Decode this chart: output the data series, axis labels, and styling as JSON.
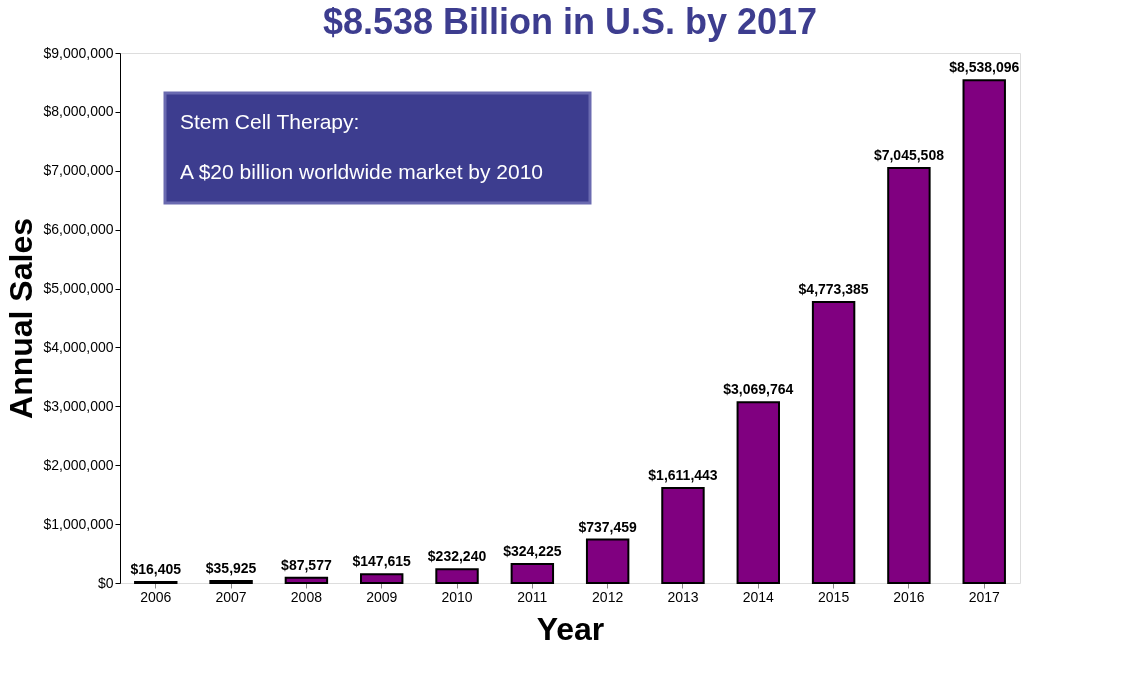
{
  "chart_data": {
    "type": "bar",
    "title": "$8.538 Billion in U.S. by 2017",
    "xlabel": "Year",
    "ylabel": "Annual Sales",
    "categories": [
      "2006",
      "2007",
      "2008",
      "2009",
      "2010",
      "2011",
      "2012",
      "2013",
      "2014",
      "2015",
      "2016",
      "2017"
    ],
    "values": [
      16405,
      35925,
      87577,
      147615,
      232240,
      324225,
      737459,
      1611443,
      3069764,
      4773385,
      7045508,
      8538096
    ],
    "value_labels": [
      "$16,405",
      "$35,925",
      "$87,577",
      "$147,615",
      "$232,240",
      "$324,225",
      "$737,459",
      "$1,611,443",
      "$3,069,764",
      "$4,773,385",
      "$7,045,508",
      "$8,538,096"
    ],
    "color": "#800080",
    "ylim": [
      0,
      9000000
    ],
    "yticks": [
      {
        "value": 0,
        "label": "$0"
      },
      {
        "value": 1000000,
        "label": "$1,000,000"
      },
      {
        "value": 2000000,
        "label": "$2,000,000"
      },
      {
        "value": 3000000,
        "label": "$3,000,000"
      },
      {
        "value": 4000000,
        "label": "$4,000,000"
      },
      {
        "value": 5000000,
        "label": "$5,000,000"
      },
      {
        "value": 6000000,
        "label": "$6,000,000"
      },
      {
        "value": 7000000,
        "label": "$7,000,000"
      },
      {
        "value": 8000000,
        "label": "$8,000,000"
      },
      {
        "value": 9000000,
        "label": "$9,000,000"
      }
    ],
    "annotations": [
      "Stem Cell Therapy:",
      "A $20 billion worldwide market by 2010"
    ],
    "grid": false
  }
}
